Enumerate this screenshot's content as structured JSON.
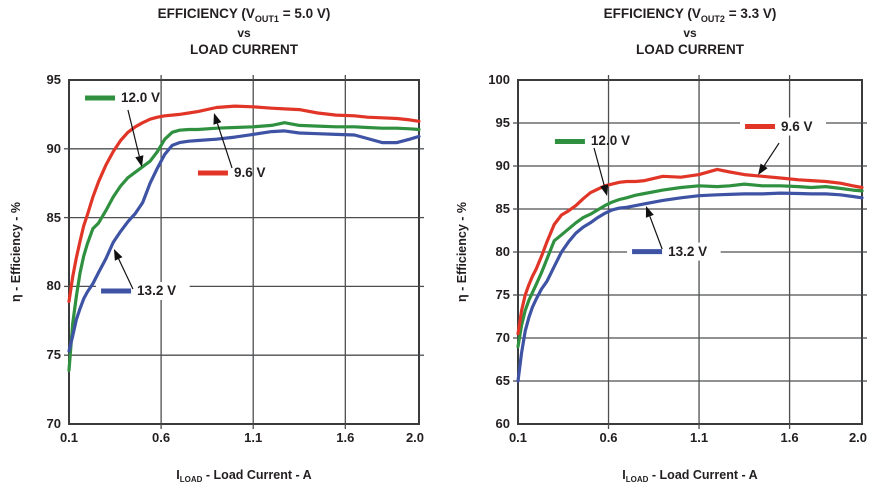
{
  "chart_data": [
    {
      "type": "line",
      "title": {
        "pre": "EFFICIENCY (V",
        "sub": "OUT1",
        "post": " = 5.0 V)",
        "line2": "vs",
        "line3": "LOAD CURRENT"
      },
      "ylabel": "η - Efficiency - %",
      "xlabel": {
        "pre": "I",
        "sub": "LOAD",
        "post": " - Load Current - A"
      },
      "xlim": [
        0.1,
        2.0
      ],
      "ylim": [
        70,
        95
      ],
      "xtick_values": [
        0.1,
        0.6,
        1.1,
        1.6,
        2.0
      ],
      "xtick_labels": [
        "0.1",
        "0.6",
        "1.1",
        "1.6",
        "2.0"
      ],
      "ytick_values": [
        70,
        75,
        80,
        85,
        90,
        95
      ],
      "ytick_labels": [
        "70",
        "75",
        "80",
        "85",
        "90",
        "95"
      ],
      "grid": true,
      "grid_color": "#4e4f51",
      "border_color": "#3a3b3d",
      "x": [
        0.1,
        0.12,
        0.14,
        0.16,
        0.18,
        0.2,
        0.23,
        0.26,
        0.3,
        0.34,
        0.38,
        0.42,
        0.46,
        0.5,
        0.54,
        0.58,
        0.62,
        0.66,
        0.7,
        0.75,
        0.8,
        0.9,
        1.0,
        1.1,
        1.2,
        1.27,
        1.35,
        1.45,
        1.55,
        1.65,
        1.72,
        1.8,
        1.88,
        1.95,
        2.0
      ],
      "series": [
        {
          "name": "9.6 V",
          "color": "#e13627",
          "values": [
            78.9,
            80.7,
            82.1,
            83.3,
            84.4,
            85.2,
            86.5,
            87.6,
            88.8,
            89.8,
            90.6,
            91.2,
            91.6,
            91.9,
            92.15,
            92.3,
            92.4,
            92.45,
            92.5,
            92.6,
            92.7,
            93.0,
            93.1,
            93.05,
            92.95,
            92.9,
            92.85,
            92.6,
            92.45,
            92.4,
            92.3,
            92.25,
            92.2,
            92.1,
            92.0
          ]
        },
        {
          "name": "12.0 V",
          "color": "#2f9140",
          "values": [
            73.9,
            77.3,
            79.3,
            81.0,
            82.2,
            83.1,
            84.2,
            84.6,
            85.5,
            86.5,
            87.3,
            87.9,
            88.3,
            88.7,
            89.1,
            89.8,
            90.7,
            91.2,
            91.35,
            91.4,
            91.4,
            91.5,
            91.55,
            91.6,
            91.7,
            91.9,
            91.7,
            91.65,
            91.6,
            91.6,
            91.55,
            91.5,
            91.5,
            91.45,
            91.4
          ]
        },
        {
          "name": "13.2 V",
          "color": "#3e53a4",
          "values": [
            75.3,
            76.4,
            77.6,
            78.4,
            79.1,
            79.6,
            80.2,
            81.0,
            82.0,
            83.2,
            84.0,
            84.7,
            85.3,
            86.1,
            87.5,
            88.6,
            89.6,
            90.25,
            90.45,
            90.55,
            90.6,
            90.7,
            90.85,
            91.05,
            91.25,
            91.3,
            91.15,
            91.1,
            91.05,
            91.0,
            90.75,
            90.45,
            90.45,
            90.7,
            90.9
          ]
        }
      ],
      "legends": [
        {
          "label": "12.0 V",
          "color": "#2f9140",
          "anchor_x": 0.187,
          "anchor_y": 93.69,
          "mask": false
        },
        {
          "label": "9.6 V",
          "color": "#e13627",
          "anchor_x": 0.8,
          "anchor_y": 88.24,
          "mask": false
        },
        {
          "label": "13.2 V",
          "color": "#3e53a4",
          "anchor_x": 0.274,
          "anchor_y": 79.67,
          "mask": true
        }
      ],
      "arrows": [
        {
          "from": [
            0.42,
            92.82
          ],
          "to": [
            0.496,
            88.68
          ]
        },
        {
          "from": [
            0.985,
            88.61
          ],
          "to": [
            0.887,
            92.6
          ]
        },
        {
          "from": [
            0.447,
            79.81
          ],
          "to": [
            0.344,
            82.72
          ]
        }
      ]
    },
    {
      "type": "line",
      "title": {
        "pre": "EFFICIENCY (V",
        "sub": "OUT2",
        "post": " = 3.3 V)",
        "line2": "vs",
        "line3": "LOAD CURRENT"
      },
      "ylabel": "η - Efficiency - %",
      "xlabel": {
        "pre": "I",
        "sub": "LOAD",
        "post": " - Load Current - A"
      },
      "xlim": [
        0.1,
        2.0
      ],
      "ylim": [
        60,
        100
      ],
      "xtick_values": [
        0.1,
        0.6,
        1.1,
        1.6,
        2.0
      ],
      "xtick_labels": [
        "0.1",
        "0.6",
        "1.1",
        "1.6",
        "2.0"
      ],
      "ytick_values": [
        60,
        65,
        70,
        75,
        80,
        85,
        90,
        95,
        100
      ],
      "ytick_labels": [
        "60",
        "65",
        "70",
        "75",
        "80",
        "85",
        "90",
        "95",
        "100"
      ],
      "grid": true,
      "grid_color": "#4e4f51",
      "border_color": "#3a3b3d",
      "x": [
        0.1,
        0.12,
        0.14,
        0.16,
        0.18,
        0.2,
        0.23,
        0.26,
        0.3,
        0.34,
        0.38,
        0.42,
        0.46,
        0.5,
        0.54,
        0.58,
        0.62,
        0.66,
        0.7,
        0.75,
        0.8,
        0.9,
        1.0,
        1.1,
        1.2,
        1.27,
        1.35,
        1.45,
        1.55,
        1.65,
        1.72,
        1.8,
        1.88,
        1.95,
        2.0
      ],
      "series": [
        {
          "name": "9.6 V",
          "color": "#e13627",
          "values": [
            70.5,
            73.2,
            75.0,
            76.2,
            77.2,
            78.0,
            79.5,
            81.2,
            83.2,
            84.3,
            84.8,
            85.4,
            86.2,
            86.9,
            87.3,
            87.7,
            87.9,
            88.1,
            88.2,
            88.2,
            88.3,
            88.8,
            88.7,
            89.0,
            89.6,
            89.3,
            89.0,
            88.8,
            88.6,
            88.4,
            88.3,
            88.2,
            88.0,
            87.7,
            87.5
          ]
        },
        {
          "name": "12.0 V",
          "color": "#2f9140",
          "values": [
            69.0,
            71.5,
            73.2,
            74.4,
            75.3,
            76.2,
            77.6,
            79.2,
            81.3,
            82.0,
            82.7,
            83.4,
            84.0,
            84.4,
            84.9,
            85.4,
            85.8,
            86.1,
            86.3,
            86.6,
            86.8,
            87.2,
            87.5,
            87.7,
            87.6,
            87.7,
            87.9,
            87.7,
            87.7,
            87.6,
            87.5,
            87.6,
            87.4,
            87.2,
            87.1
          ]
        },
        {
          "name": "13.2 V",
          "color": "#3e53a4",
          "values": [
            65.0,
            68.3,
            70.8,
            72.4,
            73.6,
            74.5,
            75.7,
            76.6,
            78.3,
            80.0,
            81.2,
            82.2,
            82.9,
            83.4,
            84.0,
            84.5,
            84.9,
            85.1,
            85.2,
            85.4,
            85.6,
            86.0,
            86.3,
            86.55,
            86.65,
            86.7,
            86.75,
            86.75,
            86.85,
            86.8,
            86.75,
            86.75,
            86.65,
            86.45,
            86.3
          ]
        }
      ],
      "legends": [
        {
          "label": "12.0 V",
          "color": "#2f9140",
          "anchor_x": 0.304,
          "anchor_y": 92.85,
          "mask": false
        },
        {
          "label": "9.6 V",
          "color": "#e13627",
          "anchor_x": 1.354,
          "anchor_y": 94.59,
          "mask": true
        },
        {
          "label": "13.2 V",
          "color": "#3e53a4",
          "anchor_x": 0.73,
          "anchor_y": 80.05,
          "mask": true
        }
      ],
      "arrows": [
        {
          "from": [
            1.542,
            92.67
          ],
          "to": [
            1.426,
            88.95
          ]
        },
        {
          "from": [
            0.52,
            92.09
          ],
          "to": [
            0.592,
            86.51
          ]
        },
        {
          "from": [
            0.896,
            80.35
          ],
          "to": [
            0.807,
            85.35
          ]
        }
      ]
    }
  ]
}
